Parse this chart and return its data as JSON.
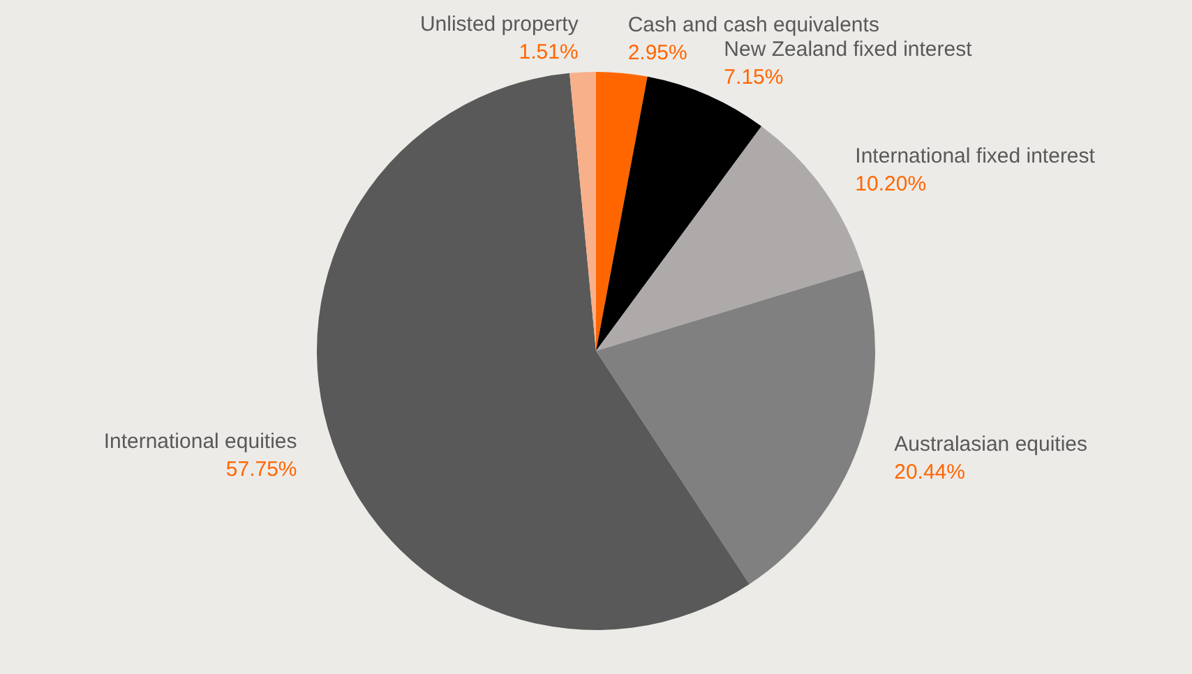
{
  "chart_data": {
    "type": "pie",
    "categories": [
      "Cash and cash equivalents",
      "New Zealand fixed interest",
      "International fixed interest",
      "Australasian equities",
      "International equities",
      "Unlisted property"
    ],
    "values": [
      2.95,
      7.15,
      10.2,
      20.44,
      57.75,
      1.51
    ],
    "colors": [
      "#ff6600",
      "#000000",
      "#aeaaaa",
      "#808080",
      "#595959",
      "#f8b08a"
    ],
    "value_labels": [
      "2.95%",
      "7.15%",
      "10.20%",
      "20.44%",
      "57.75%",
      "1.51%"
    ]
  }
}
